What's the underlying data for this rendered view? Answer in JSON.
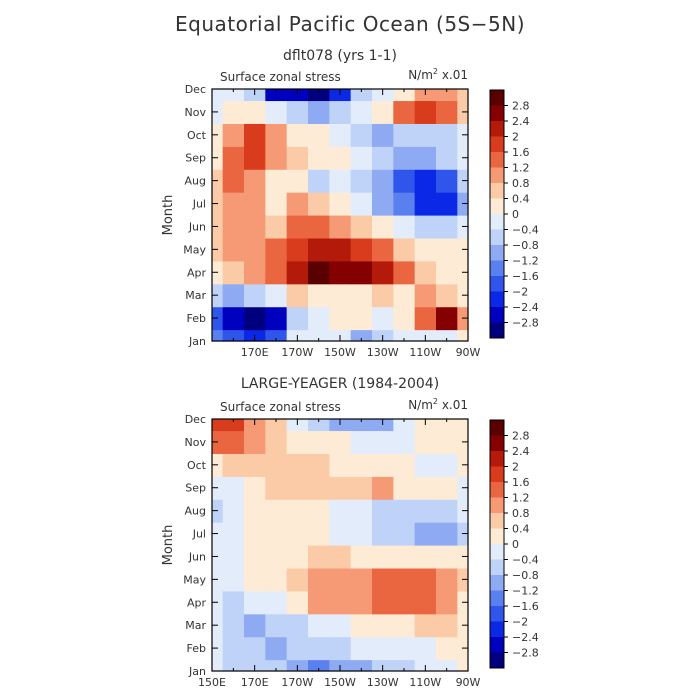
{
  "title": "Equatorial Pacific Ocean (5S−5N)",
  "colors": {
    "levels": [
      -2.8,
      -2.4,
      -2.0,
      -1.6,
      -1.2,
      -0.8,
      -0.4,
      0,
      0.4,
      0.8,
      1.2,
      1.6,
      2.0,
      2.4,
      2.8
    ],
    "bins": [
      "#00007f",
      "#0000bf",
      "#0a28e6",
      "#2f55ea",
      "#5a80ef",
      "#8eaaf2",
      "#bfd2f7",
      "#e2ecfb",
      "#fdebd6",
      "#fbcaa6",
      "#f59a75",
      "#ea6640",
      "#d83c1c",
      "#b41a0a",
      "#850000",
      "#5a0000"
    ]
  },
  "chart_data": [
    {
      "type": "heatmap",
      "title": "dflt078 (yrs 1-1)",
      "panel_label": "Surface zonal stress",
      "units_label": "N/m² x.01",
      "ylabel": "Month",
      "x_ticks": [
        "170E",
        "170W",
        "150W",
        "130W",
        "110W",
        "90W"
      ],
      "y_ticks": [
        "Jan",
        "Feb",
        "Mar",
        "Apr",
        "May",
        "Jun",
        "Jul",
        "Aug",
        "Sep",
        "Oct",
        "Nov",
        "Dec"
      ],
      "colorbar_labels": [
        "2.8",
        "2.4",
        "2",
        "1.6",
        "1.2",
        "0.8",
        "0.4",
        "0",
        "−0.4",
        "−0.8",
        "−1.2",
        "−1.6",
        "−2",
        "−2.4",
        "−2.8"
      ],
      "x_lon": [
        150,
        160,
        170,
        180,
        190,
        200,
        210,
        220,
        230,
        240,
        250,
        260,
        270
      ],
      "grid": [
        [
          -1.3,
          -1.8,
          -2.4,
          -2.0,
          -0.4,
          -0.3,
          -0.4,
          -0.9,
          -0.8,
          -0.3,
          -0.2,
          -0.1,
          0.0
        ],
        [
          -1.9,
          -2.6,
          -3.0,
          -2.7,
          -0.8,
          -0.2,
          0.3,
          0.3,
          -0.2,
          0.2,
          1.4,
          2.4,
          0.9
        ],
        [
          -0.7,
          -1.2,
          -0.7,
          -0.4,
          0.6,
          0.1,
          0.1,
          0.2,
          0.4,
          0.3,
          0.8,
          0.7,
          0.2
        ],
        [
          0.2,
          0.4,
          0.8,
          1.5,
          2.3,
          2.8,
          2.6,
          2.7,
          2.2,
          1.4,
          0.5,
          0.2,
          0.1
        ],
        [
          0.4,
          1.0,
          1.1,
          1.4,
          1.9,
          2.1,
          2.2,
          1.7,
          1.2,
          0.4,
          0.1,
          0.0,
          0.0
        ],
        [
          0.6,
          1.0,
          0.8,
          0.6,
          1.4,
          1.3,
          0.8,
          0.4,
          0.1,
          -0.3,
          -0.6,
          -0.8,
          -0.3
        ],
        [
          0.7,
          1.0,
          0.9,
          0.3,
          0.8,
          0.4,
          0.2,
          -0.3,
          -0.9,
          -1.6,
          -2.1,
          -2.4,
          -1.2
        ],
        [
          0.4,
          1.2,
          1.0,
          0.2,
          0.1,
          -0.7,
          -0.2,
          -0.5,
          -0.9,
          -1.9,
          -2.2,
          -1.8,
          -0.8
        ],
        [
          0.3,
          1.3,
          1.7,
          0.9,
          0.7,
          0.1,
          0.2,
          -0.2,
          -0.6,
          -1.0,
          -1.2,
          -0.8,
          -0.4
        ],
        [
          0.0,
          0.9,
          1.8,
          1.0,
          0.3,
          0.0,
          -0.1,
          -0.5,
          -0.9,
          -0.5,
          -0.6,
          -0.5,
          -0.2
        ],
        [
          -0.3,
          0.0,
          0.2,
          -0.4,
          -0.8,
          -1.1,
          -0.7,
          -0.3,
          0.2,
          1.2,
          1.8,
          1.3,
          0.4
        ],
        [
          -0.1,
          -0.2,
          -0.6,
          -2.6,
          -2.8,
          -2.9,
          -2.1,
          -0.8,
          -0.2,
          0.3,
          1.0,
          0.9,
          0.5
        ]
      ]
    },
    {
      "type": "heatmap",
      "title": "LARGE-YEAGER (1984-2004)",
      "panel_label": "Surface zonal stress",
      "units_label": "N/m² x.01",
      "ylabel": "Month",
      "x_ticks": [
        "150E",
        "170E",
        "170W",
        "150W",
        "130W",
        "110W",
        "90W"
      ],
      "y_ticks": [
        "Jan",
        "Feb",
        "Mar",
        "Apr",
        "May",
        "Jun",
        "Jul",
        "Aug",
        "Sep",
        "Oct",
        "Nov",
        "Dec"
      ],
      "colorbar_labels": [
        "2.8",
        "2.4",
        "2",
        "1.6",
        "1.2",
        "0.8",
        "0.4",
        "0",
        "−0.4",
        "−0.8",
        "−1.2",
        "−1.6",
        "−2",
        "−2.4",
        "−2.8"
      ],
      "x_lon": [
        150,
        160,
        170,
        180,
        190,
        200,
        210,
        220,
        230,
        240,
        250,
        260,
        270
      ],
      "grid": [
        [
          -0.3,
          -0.6,
          -0.5,
          -0.6,
          -1.0,
          -1.3,
          -1.2,
          -1.0,
          -0.8,
          -0.5,
          -0.3,
          -0.2,
          0.1
        ],
        [
          -0.4,
          -0.7,
          -0.8,
          -0.9,
          -0.8,
          -0.7,
          -0.5,
          -0.4,
          -0.3,
          -0.2,
          -0.1,
          0.0,
          0.1
        ],
        [
          -0.3,
          -0.8,
          -1.0,
          -0.8,
          -0.5,
          -0.2,
          -0.1,
          0.1,
          0.2,
          0.3,
          0.5,
          0.6,
          0.2
        ],
        [
          -0.3,
          -0.5,
          -0.4,
          -0.1,
          0.3,
          0.8,
          1.0,
          1.0,
          1.3,
          1.5,
          1.2,
          0.9,
          0.3
        ],
        [
          -0.2,
          -0.3,
          0.0,
          0.2,
          0.6,
          0.9,
          0.9,
          0.9,
          1.2,
          1.4,
          1.3,
          1.0,
          0.4
        ],
        [
          -0.3,
          -0.2,
          0.1,
          0.2,
          0.3,
          0.4,
          0.4,
          0.2,
          0.2,
          0.3,
          0.2,
          0.1,
          0.1
        ],
        [
          -0.4,
          -0.2,
          0.2,
          0.2,
          0.2,
          0.1,
          -0.1,
          -0.3,
          -0.5,
          -0.7,
          -0.9,
          -1.0,
          -0.5
        ],
        [
          -0.5,
          -0.2,
          0.2,
          0.3,
          0.2,
          0.0,
          -0.2,
          -0.4,
          -0.6,
          -0.8,
          -0.7,
          -0.5,
          -0.3
        ],
        [
          -0.4,
          -0.1,
          0.3,
          0.4,
          0.4,
          0.5,
          0.5,
          0.7,
          0.8,
          0.3,
          0.1,
          0.0,
          -0.1
        ],
        [
          0.0,
          0.4,
          0.6,
          0.5,
          0.5,
          0.4,
          0.3,
          0.2,
          0.1,
          0.0,
          -0.1,
          -0.1,
          0.0
        ],
        [
          1.3,
          1.2,
          0.8,
          0.4,
          0.2,
          0.1,
          0.0,
          -0.2,
          -0.3,
          -0.2,
          0.0,
          0.0,
          0.0
        ],
        [
          1.9,
          1.6,
          1.0,
          0.5,
          -0.1,
          -0.8,
          -1.0,
          -1.2,
          -0.9,
          -0.2,
          0.0,
          0.1,
          0.0
        ]
      ]
    }
  ]
}
